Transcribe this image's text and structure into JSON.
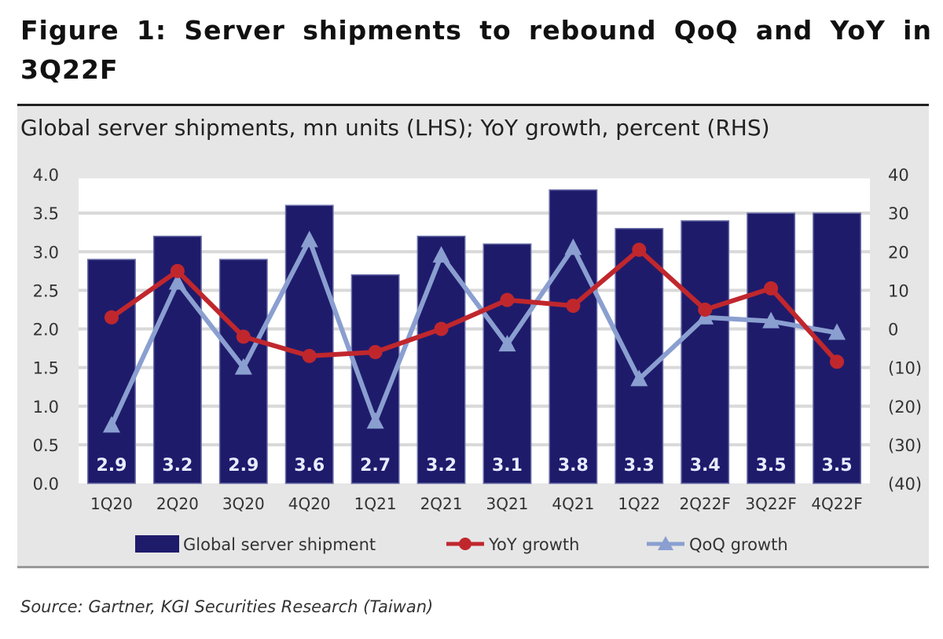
{
  "title": "Figure 1: Server shipments to rebound QoQ and YoY in 3Q22F",
  "source": "Source: Gartner, KGI Securities Research (Taiwan)",
  "chart_data": {
    "type": "bar",
    "subtitle": "Global server shipments, mn units (LHS); YoY growth, percent (RHS)",
    "categories": [
      "1Q20",
      "2Q20",
      "3Q20",
      "4Q20",
      "1Q21",
      "2Q21",
      "3Q21",
      "4Q21",
      "1Q22",
      "2Q22F",
      "3Q22F",
      "4Q22F"
    ],
    "left_axis": {
      "range": [
        0,
        4.0
      ],
      "ticks": [
        "0.0",
        "0.5",
        "1.0",
        "1.5",
        "2.0",
        "2.5",
        "3.0",
        "3.5",
        "4.0"
      ]
    },
    "right_axis": {
      "range": [
        -40,
        40
      ],
      "ticks": [
        "(40)",
        "(30)",
        "(20)",
        "(10)",
        "0",
        "10",
        "20",
        "30",
        "40"
      ]
    },
    "grid": true,
    "legend_placement": "bottom",
    "series": [
      {
        "name": "Global server shipment",
        "type": "bar",
        "axis": "left",
        "color": "#1f1b6b",
        "values": [
          2.9,
          3.2,
          2.9,
          3.6,
          2.7,
          3.2,
          3.1,
          3.8,
          3.3,
          3.4,
          3.5,
          3.5
        ],
        "labels": [
          "2.9",
          "3.2",
          "2.9",
          "3.6",
          "2.7",
          "3.2",
          "3.1",
          "3.8",
          "3.3",
          "3.4",
          "3.5",
          "3.5"
        ]
      },
      {
        "name": "YoY growth",
        "type": "line",
        "marker": "circle",
        "axis": "right",
        "color": "#c0272d",
        "values": [
          3,
          15,
          -2,
          -7,
          -6,
          0,
          7.5,
          6,
          20.5,
          5,
          10.5,
          -8.5
        ]
      },
      {
        "name": "QoQ growth",
        "type": "line",
        "marker": "triangle",
        "axis": "right",
        "color": "#8a9fd0",
        "values": [
          -25,
          12,
          -10,
          23,
          -24,
          19,
          -4,
          21,
          -13,
          3,
          2,
          -1
        ]
      }
    ]
  }
}
